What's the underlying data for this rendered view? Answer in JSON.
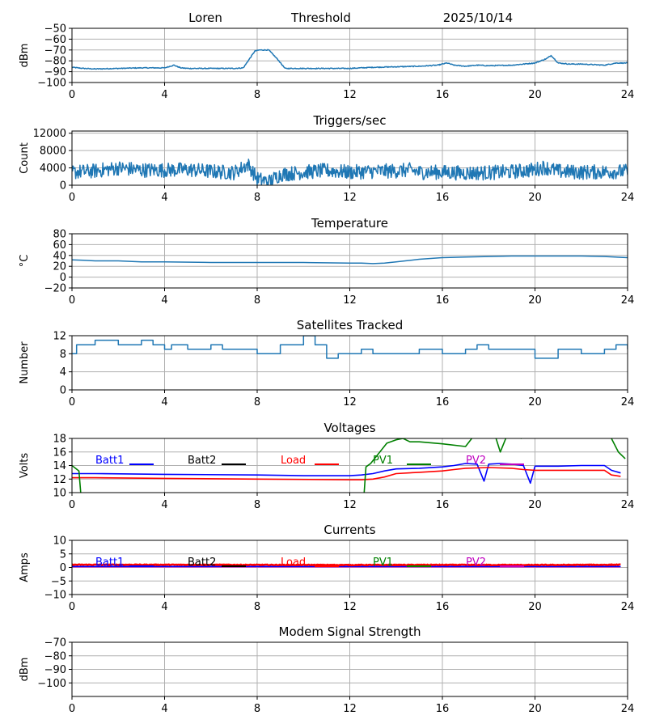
{
  "header": {
    "station": "Loren",
    "label": "Threshold",
    "date": "2025/10/14"
  },
  "colors": {
    "series": "#1f77b4",
    "grid": "#b0b0b0",
    "Batt1": "#0000ff",
    "Batt2": "#000000",
    "Load": "#ff0000",
    "PV1": "#008000",
    "PV2": "#bf00bf"
  },
  "chart_data": [
    {
      "id": "threshold",
      "type": "line",
      "title": "",
      "xlabel": "",
      "ylabel": "dBm",
      "xlim": [
        0,
        24
      ],
      "ylim": [
        -100,
        -50
      ],
      "xticks": [
        0,
        4,
        8,
        12,
        16,
        20,
        24
      ],
      "yticks": [
        -100,
        -90,
        -80,
        -70,
        -60,
        -50
      ],
      "grid": true,
      "series": [
        {
          "name": "Threshold",
          "color": "#1f77b4",
          "noise": 0.4,
          "x": [
            0,
            0.5,
            1,
            2,
            3,
            4,
            4.4,
            4.7,
            5,
            6,
            7,
            7.4,
            7.9,
            8.1,
            8.5,
            8.9,
            9.2,
            10,
            11,
            12,
            12.5,
            13,
            14,
            15,
            15.8,
            16.2,
            16.5,
            17,
            17.5,
            18,
            19,
            19.5,
            20,
            20.5,
            20.7,
            21,
            21.5,
            22,
            23,
            23.5,
            24
          ],
          "y": [
            -86,
            -87,
            -87.5,
            -87,
            -86.5,
            -86.5,
            -84,
            -86.5,
            -87,
            -87,
            -87,
            -86.5,
            -71,
            -70,
            -70,
            -79,
            -87,
            -87,
            -87,
            -87,
            -86.5,
            -86,
            -85.5,
            -85,
            -84,
            -82,
            -84,
            -85,
            -84,
            -84.5,
            -84,
            -83,
            -82,
            -78,
            -75,
            -82,
            -83,
            -83,
            -84,
            -82,
            -82
          ]
        }
      ]
    },
    {
      "id": "triggers",
      "type": "line",
      "title": "Triggers/sec",
      "xlabel": "",
      "ylabel": "Count",
      "xlim": [
        0,
        24
      ],
      "ylim": [
        0,
        12500
      ],
      "xticks": [
        0,
        4,
        8,
        12,
        16,
        20,
        24
      ],
      "yticks": [
        0,
        4000,
        8000,
        12000
      ],
      "grid": true,
      "series": [
        {
          "name": "Triggers/sec",
          "color": "#1f77b4",
          "noise": 1700,
          "x": [
            0,
            1,
            2,
            3,
            4,
            5,
            6,
            7,
            7.6,
            8,
            8.5,
            9,
            10,
            11,
            12,
            13,
            14,
            14.6,
            15,
            16,
            17,
            18,
            19,
            20,
            20.4,
            21,
            22,
            23,
            24
          ],
          "y": [
            3000,
            3300,
            4000,
            3500,
            3500,
            3600,
            3200,
            2900,
            4800,
            1500,
            800,
            2500,
            3000,
            3400,
            3000,
            3200,
            3300,
            3500,
            3000,
            3000,
            2800,
            2900,
            3100,
            3600,
            4200,
            3200,
            3000,
            3100,
            3200
          ]
        }
      ]
    },
    {
      "id": "temperature",
      "type": "line",
      "title": "Temperature",
      "xlabel": "",
      "ylabel": "°C",
      "xlim": [
        0,
        24
      ],
      "ylim": [
        -20,
        80
      ],
      "xticks": [
        0,
        4,
        8,
        12,
        16,
        20,
        24
      ],
      "yticks": [
        -20,
        0,
        20,
        40,
        60,
        80
      ],
      "grid": true,
      "series": [
        {
          "name": "Temperature",
          "color": "#1f77b4",
          "noise": 0,
          "x": [
            0,
            0.5,
            1,
            2,
            3,
            4,
            6,
            8,
            10,
            12,
            12.5,
            13,
            13.5,
            14,
            15,
            16,
            17,
            18,
            19,
            20,
            21,
            22,
            23,
            24
          ],
          "y": [
            32,
            31,
            30,
            30,
            28,
            28,
            27,
            27,
            27,
            26,
            26,
            25,
            26,
            28,
            33,
            36,
            37,
            38,
            39,
            39,
            39,
            39,
            38,
            36
          ]
        }
      ]
    },
    {
      "id": "satellites",
      "type": "line",
      "title": "Satellites Tracked",
      "xlabel": "",
      "ylabel": "Number",
      "xlim": [
        0,
        24
      ],
      "ylim": [
        0,
        12
      ],
      "xticks": [
        0,
        4,
        8,
        12,
        16,
        20,
        24
      ],
      "yticks": [
        0,
        4,
        8,
        12
      ],
      "grid": true,
      "step": true,
      "series": [
        {
          "name": "Satellites",
          "color": "#1f77b4",
          "noise": 0,
          "x": [
            0,
            0.2,
            0.5,
            1,
            2,
            2.5,
            3,
            3.5,
            4,
            4.3,
            5,
            6,
            6.5,
            7,
            7.5,
            8,
            9,
            9.5,
            10,
            10.5,
            11,
            11.5,
            12,
            12.5,
            13,
            14,
            15,
            16,
            17,
            17.5,
            18,
            19,
            20,
            21,
            22,
            22.5,
            23,
            23.5,
            24
          ],
          "y": [
            8,
            10,
            10,
            11,
            10,
            10,
            11,
            10,
            9,
            10,
            9,
            10,
            9,
            9,
            9,
            8,
            10,
            10,
            12,
            10,
            7,
            8,
            8,
            9,
            8,
            8,
            9,
            8,
            9,
            10,
            9,
            9,
            7,
            9,
            8,
            8,
            9,
            10,
            9
          ]
        }
      ]
    },
    {
      "id": "voltages",
      "type": "line",
      "title": "Voltages",
      "xlabel": "",
      "ylabel": "Volts",
      "xlim": [
        0,
        24
      ],
      "ylim": [
        10,
        18
      ],
      "xticks": [
        0,
        4,
        8,
        12,
        16,
        20,
        24
      ],
      "yticks": [
        10,
        12,
        14,
        16,
        18
      ],
      "grid": true,
      "legend": [
        "Batt1",
        "Batt2",
        "Load",
        "PV1",
        "PV2"
      ],
      "series": [
        {
          "name": "Batt1",
          "color": "#0000ff",
          "noise": 0,
          "x": [
            0,
            1,
            4,
            8,
            10,
            12,
            12.5,
            13,
            13.5,
            14,
            15,
            16,
            16.5,
            17,
            17.5,
            17.8,
            18,
            18.5,
            19,
            19.5,
            19.8,
            20,
            21,
            22,
            23,
            23.3,
            23.7
          ],
          "y": [
            12.8,
            12.8,
            12.7,
            12.6,
            12.5,
            12.5,
            12.6,
            12.8,
            13.2,
            13.5,
            13.6,
            13.8,
            14.0,
            14.3,
            14.2,
            11.7,
            14.2,
            14.3,
            14.2,
            14.0,
            11.4,
            13.9,
            13.9,
            14.0,
            14.0,
            13.3,
            12.9
          ]
        },
        {
          "name": "Load",
          "color": "#ff0000",
          "noise": 0,
          "x": [
            0,
            1,
            4,
            8,
            12,
            12.5,
            13,
            13.5,
            14,
            15,
            16,
            16.5,
            17,
            18,
            19,
            19.5,
            20,
            21,
            22,
            23,
            23.3,
            23.7
          ],
          "y": [
            12.2,
            12.2,
            12.1,
            12.0,
            11.9,
            11.9,
            12.0,
            12.3,
            12.8,
            13.0,
            13.2,
            13.4,
            13.6,
            13.7,
            13.6,
            13.4,
            13.3,
            13.3,
            13.3,
            13.3,
            12.6,
            12.4
          ]
        },
        {
          "name": "PV1",
          "color": "#008000",
          "noise": 0,
          "x": [
            0,
            0.3,
            0.4,
            12.6,
            12.7,
            12.9,
            13.3,
            13.6,
            14,
            14.3,
            14.6,
            15,
            16,
            17,
            17.5,
            18,
            18.3,
            18.5,
            18.8,
            19,
            19.4,
            20,
            23,
            23.3,
            23.6,
            23.9
          ],
          "y": [
            14,
            13.2,
            9,
            9,
            13.8,
            14.3,
            16,
            17.3,
            17.8,
            18,
            17.5,
            17.5,
            17.2,
            16.8,
            19,
            19,
            18.2,
            16.0,
            18.5,
            19,
            18,
            19,
            19,
            18,
            16,
            15
          ]
        }
      ]
    },
    {
      "id": "currents",
      "type": "line",
      "title": "Currents",
      "xlabel": "",
      "ylabel": "Amps",
      "xlim": [
        0,
        24
      ],
      "ylim": [
        -10,
        10
      ],
      "xticks": [
        0,
        4,
        8,
        12,
        16,
        20,
        24
      ],
      "yticks": [
        -10,
        -5,
        0,
        5,
        10
      ],
      "grid": true,
      "legend": [
        "Batt1",
        "Batt2",
        "Load",
        "PV1",
        "PV2"
      ],
      "series": [
        {
          "name": "PV2",
          "color": "#bf00bf",
          "noise": 0,
          "x": [
            0,
            23.7
          ],
          "y": [
            0.2,
            0.2
          ]
        },
        {
          "name": "Batt1",
          "color": "#0000ff",
          "noise": 0,
          "x": [
            0,
            23.7
          ],
          "y": [
            0.4,
            0.4
          ]
        },
        {
          "name": "Load",
          "color": "#ff0000",
          "noise": 0.15,
          "x": [
            0,
            4,
            8,
            12,
            16,
            20,
            23.7
          ],
          "y": [
            1.0,
            1.0,
            0.95,
            0.9,
            0.95,
            0.9,
            1.0
          ]
        }
      ]
    },
    {
      "id": "modem",
      "type": "line",
      "title": "Modem Signal Strength",
      "xlabel": "",
      "ylabel": "dBm",
      "xlim": [
        0,
        24
      ],
      "ylim": [
        -110,
        -70
      ],
      "xticks": [
        0,
        4,
        8,
        12,
        16,
        20,
        24
      ],
      "yticks": [
        -100,
        -90,
        -80,
        -70
      ],
      "grid": true,
      "series": []
    }
  ]
}
